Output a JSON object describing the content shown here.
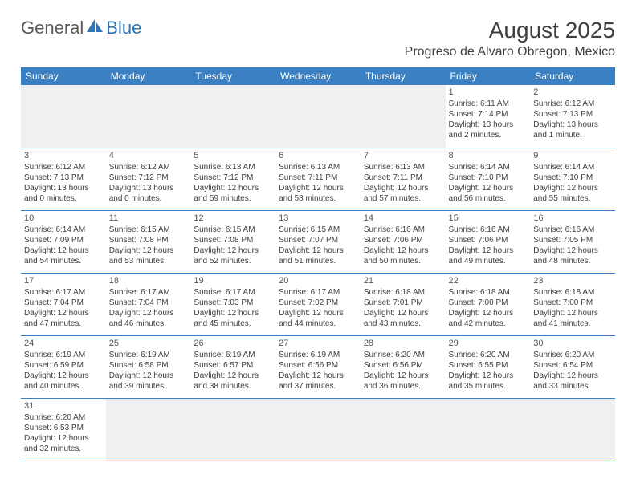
{
  "logo": {
    "part1": "General",
    "part2": "Blue"
  },
  "title": "August 2025",
  "location": "Progreso de Alvaro Obregon, Mexico",
  "colors": {
    "header_bg": "#3a80c2",
    "header_text": "#ffffff",
    "brand_blue": "#2e75b6",
    "text": "#404040",
    "empty_bg": "#f0f0f0",
    "border": "#3a80c2"
  },
  "day_headers": [
    "Sunday",
    "Monday",
    "Tuesday",
    "Wednesday",
    "Thursday",
    "Friday",
    "Saturday"
  ],
  "weeks": [
    [
      null,
      null,
      null,
      null,
      null,
      {
        "n": "1",
        "sr": "Sunrise: 6:11 AM",
        "ss": "Sunset: 7:14 PM",
        "d1": "Daylight: 13 hours",
        "d2": "and 2 minutes."
      },
      {
        "n": "2",
        "sr": "Sunrise: 6:12 AM",
        "ss": "Sunset: 7:13 PM",
        "d1": "Daylight: 13 hours",
        "d2": "and 1 minute."
      }
    ],
    [
      {
        "n": "3",
        "sr": "Sunrise: 6:12 AM",
        "ss": "Sunset: 7:13 PM",
        "d1": "Daylight: 13 hours",
        "d2": "and 0 minutes."
      },
      {
        "n": "4",
        "sr": "Sunrise: 6:12 AM",
        "ss": "Sunset: 7:12 PM",
        "d1": "Daylight: 13 hours",
        "d2": "and 0 minutes."
      },
      {
        "n": "5",
        "sr": "Sunrise: 6:13 AM",
        "ss": "Sunset: 7:12 PM",
        "d1": "Daylight: 12 hours",
        "d2": "and 59 minutes."
      },
      {
        "n": "6",
        "sr": "Sunrise: 6:13 AM",
        "ss": "Sunset: 7:11 PM",
        "d1": "Daylight: 12 hours",
        "d2": "and 58 minutes."
      },
      {
        "n": "7",
        "sr": "Sunrise: 6:13 AM",
        "ss": "Sunset: 7:11 PM",
        "d1": "Daylight: 12 hours",
        "d2": "and 57 minutes."
      },
      {
        "n": "8",
        "sr": "Sunrise: 6:14 AM",
        "ss": "Sunset: 7:10 PM",
        "d1": "Daylight: 12 hours",
        "d2": "and 56 minutes."
      },
      {
        "n": "9",
        "sr": "Sunrise: 6:14 AM",
        "ss": "Sunset: 7:10 PM",
        "d1": "Daylight: 12 hours",
        "d2": "and 55 minutes."
      }
    ],
    [
      {
        "n": "10",
        "sr": "Sunrise: 6:14 AM",
        "ss": "Sunset: 7:09 PM",
        "d1": "Daylight: 12 hours",
        "d2": "and 54 minutes."
      },
      {
        "n": "11",
        "sr": "Sunrise: 6:15 AM",
        "ss": "Sunset: 7:08 PM",
        "d1": "Daylight: 12 hours",
        "d2": "and 53 minutes."
      },
      {
        "n": "12",
        "sr": "Sunrise: 6:15 AM",
        "ss": "Sunset: 7:08 PM",
        "d1": "Daylight: 12 hours",
        "d2": "and 52 minutes."
      },
      {
        "n": "13",
        "sr": "Sunrise: 6:15 AM",
        "ss": "Sunset: 7:07 PM",
        "d1": "Daylight: 12 hours",
        "d2": "and 51 minutes."
      },
      {
        "n": "14",
        "sr": "Sunrise: 6:16 AM",
        "ss": "Sunset: 7:06 PM",
        "d1": "Daylight: 12 hours",
        "d2": "and 50 minutes."
      },
      {
        "n": "15",
        "sr": "Sunrise: 6:16 AM",
        "ss": "Sunset: 7:06 PM",
        "d1": "Daylight: 12 hours",
        "d2": "and 49 minutes."
      },
      {
        "n": "16",
        "sr": "Sunrise: 6:16 AM",
        "ss": "Sunset: 7:05 PM",
        "d1": "Daylight: 12 hours",
        "d2": "and 48 minutes."
      }
    ],
    [
      {
        "n": "17",
        "sr": "Sunrise: 6:17 AM",
        "ss": "Sunset: 7:04 PM",
        "d1": "Daylight: 12 hours",
        "d2": "and 47 minutes."
      },
      {
        "n": "18",
        "sr": "Sunrise: 6:17 AM",
        "ss": "Sunset: 7:04 PM",
        "d1": "Daylight: 12 hours",
        "d2": "and 46 minutes."
      },
      {
        "n": "19",
        "sr": "Sunrise: 6:17 AM",
        "ss": "Sunset: 7:03 PM",
        "d1": "Daylight: 12 hours",
        "d2": "and 45 minutes."
      },
      {
        "n": "20",
        "sr": "Sunrise: 6:17 AM",
        "ss": "Sunset: 7:02 PM",
        "d1": "Daylight: 12 hours",
        "d2": "and 44 minutes."
      },
      {
        "n": "21",
        "sr": "Sunrise: 6:18 AM",
        "ss": "Sunset: 7:01 PM",
        "d1": "Daylight: 12 hours",
        "d2": "and 43 minutes."
      },
      {
        "n": "22",
        "sr": "Sunrise: 6:18 AM",
        "ss": "Sunset: 7:00 PM",
        "d1": "Daylight: 12 hours",
        "d2": "and 42 minutes."
      },
      {
        "n": "23",
        "sr": "Sunrise: 6:18 AM",
        "ss": "Sunset: 7:00 PM",
        "d1": "Daylight: 12 hours",
        "d2": "and 41 minutes."
      }
    ],
    [
      {
        "n": "24",
        "sr": "Sunrise: 6:19 AM",
        "ss": "Sunset: 6:59 PM",
        "d1": "Daylight: 12 hours",
        "d2": "and 40 minutes."
      },
      {
        "n": "25",
        "sr": "Sunrise: 6:19 AM",
        "ss": "Sunset: 6:58 PM",
        "d1": "Daylight: 12 hours",
        "d2": "and 39 minutes."
      },
      {
        "n": "26",
        "sr": "Sunrise: 6:19 AM",
        "ss": "Sunset: 6:57 PM",
        "d1": "Daylight: 12 hours",
        "d2": "and 38 minutes."
      },
      {
        "n": "27",
        "sr": "Sunrise: 6:19 AM",
        "ss": "Sunset: 6:56 PM",
        "d1": "Daylight: 12 hours",
        "d2": "and 37 minutes."
      },
      {
        "n": "28",
        "sr": "Sunrise: 6:20 AM",
        "ss": "Sunset: 6:56 PM",
        "d1": "Daylight: 12 hours",
        "d2": "and 36 minutes."
      },
      {
        "n": "29",
        "sr": "Sunrise: 6:20 AM",
        "ss": "Sunset: 6:55 PM",
        "d1": "Daylight: 12 hours",
        "d2": "and 35 minutes."
      },
      {
        "n": "30",
        "sr": "Sunrise: 6:20 AM",
        "ss": "Sunset: 6:54 PM",
        "d1": "Daylight: 12 hours",
        "d2": "and 33 minutes."
      }
    ],
    [
      {
        "n": "31",
        "sr": "Sunrise: 6:20 AM",
        "ss": "Sunset: 6:53 PM",
        "d1": "Daylight: 12 hours",
        "d2": "and 32 minutes."
      },
      null,
      null,
      null,
      null,
      null,
      null
    ]
  ]
}
